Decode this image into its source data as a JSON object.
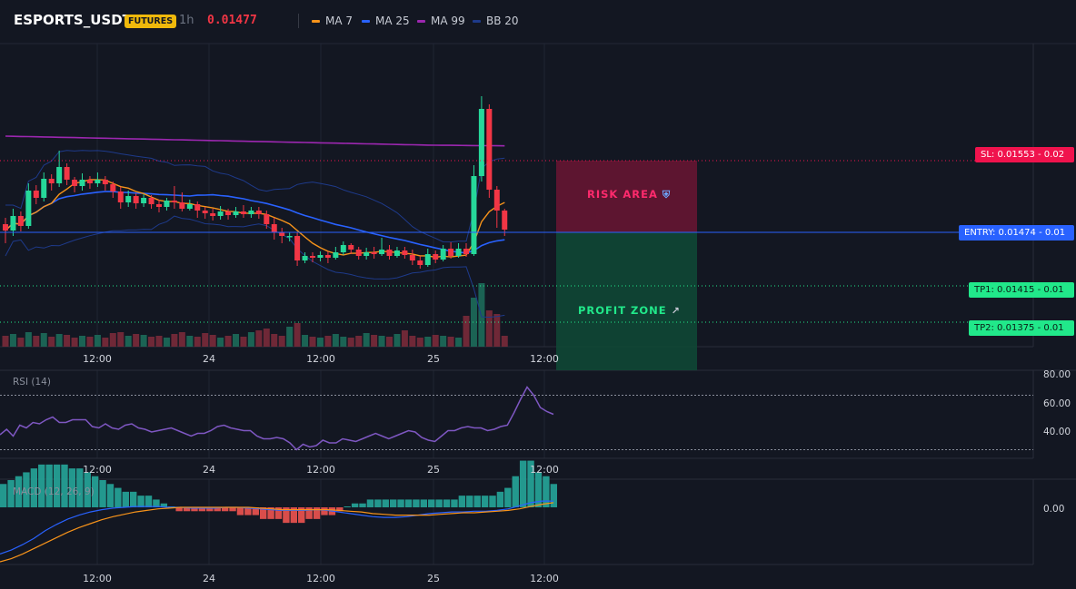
{
  "header": {
    "symbol": "ESPORTS_USDT",
    "badge": "FUTURES",
    "interval": "1h",
    "price": "0.01477",
    "legend": [
      {
        "label": "MA 7",
        "color": "#f7931a"
      },
      {
        "label": "MA 25",
        "color": "#2962ff"
      },
      {
        "label": "MA 99",
        "color": "#9c27b0"
      },
      {
        "label": "BB 20",
        "color": "#1e3a8a"
      }
    ]
  },
  "levels": {
    "sl": "SL: 0.01553 - 0.02",
    "entry": "ENTRY: 0.01474 - 0.01",
    "tp1": "TP1: 0.01415 - 0.01",
    "tp2": "TP2: 0.01375 - 0.01"
  },
  "zones": {
    "risk_label": "RISK AREA",
    "profit_label": "PROFIT ZONE",
    "risk_icon": "shield-icon",
    "profit_icon": "rocket-icon"
  },
  "colors": {
    "up": "#26d89a",
    "down": "#f23645",
    "ma7": "#f7931a",
    "ma25": "#2962ff",
    "ma99": "#9c27b0",
    "bb": "#1e3a8a",
    "rsi": "#7e57c2",
    "macd_line": "#2962ff",
    "signal_line": "#f7931a"
  },
  "chart_data": [
    {
      "type": "candlestick",
      "title": "ESPORTS_USDT",
      "x_ticks": [
        "12:00",
        "24",
        "12:00",
        "25",
        "12:00"
      ],
      "ylim": [
        0.0134,
        0.0167
      ],
      "series": [
        {
          "name": "MA 7"
        },
        {
          "name": "MA 25"
        },
        {
          "name": "MA 99"
        },
        {
          "name": "BB 20"
        }
      ],
      "candles": [
        [
          0.01483,
          0.01476,
          0.0149,
          0.01462
        ],
        [
          0.01476,
          0.01492,
          0.015,
          0.0147
        ],
        [
          0.01492,
          0.01481,
          0.01497,
          0.01475
        ],
        [
          0.01481,
          0.0152,
          0.01528,
          0.01478
        ],
        [
          0.0152,
          0.01512,
          0.01526,
          0.01505
        ],
        [
          0.01512,
          0.01533,
          0.0154,
          0.01508
        ],
        [
          0.01533,
          0.01528,
          0.01538,
          0.0152
        ],
        [
          0.01528,
          0.01546,
          0.01564,
          0.01524
        ],
        [
          0.01546,
          0.01532,
          0.0155,
          0.01526
        ],
        [
          0.01532,
          0.01525,
          0.01535,
          0.01518
        ],
        [
          0.01525,
          0.01532,
          0.01539,
          0.0152
        ],
        [
          0.01532,
          0.01528,
          0.01536,
          0.01522
        ],
        [
          0.01528,
          0.01532,
          0.0154,
          0.01524
        ],
        [
          0.01532,
          0.01527,
          0.01536,
          0.0152
        ],
        [
          0.01527,
          0.01519,
          0.0153,
          0.01512
        ],
        [
          0.01519,
          0.01507,
          0.01524,
          0.015
        ],
        [
          0.01507,
          0.01514,
          0.0152,
          0.01502
        ],
        [
          0.01514,
          0.01506,
          0.01517,
          0.015
        ],
        [
          0.01506,
          0.01512,
          0.01516,
          0.01502
        ],
        [
          0.01512,
          0.01505,
          0.01515,
          0.015
        ],
        [
          0.01505,
          0.01502,
          0.0151,
          0.01496
        ],
        [
          0.01502,
          0.01509,
          0.01512,
          0.01498
        ],
        [
          0.01509,
          0.01507,
          0.01525,
          0.015
        ],
        [
          0.01507,
          0.015,
          0.01518,
          0.01497
        ],
        [
          0.015,
          0.01505,
          0.0151,
          0.01498
        ],
        [
          0.01505,
          0.01498,
          0.01508,
          0.0149
        ],
        [
          0.01498,
          0.01495,
          0.01502,
          0.01489
        ],
        [
          0.01495,
          0.01492,
          0.015,
          0.01487
        ],
        [
          0.01492,
          0.01497,
          0.01503,
          0.01488
        ],
        [
          0.01497,
          0.01493,
          0.015,
          0.01488
        ],
        [
          0.01493,
          0.01497,
          0.01502,
          0.0149
        ],
        [
          0.01497,
          0.01494,
          0.01504,
          0.0149
        ],
        [
          0.01494,
          0.01498,
          0.01502,
          0.0149
        ],
        [
          0.01498,
          0.01494,
          0.01502,
          0.01489
        ],
        [
          0.01494,
          0.01483,
          0.01498,
          0.01478
        ],
        [
          0.01483,
          0.01474,
          0.0149,
          0.01466
        ],
        [
          0.01474,
          0.0147,
          0.01479,
          0.01462
        ],
        [
          0.0147,
          0.0147,
          0.01474,
          0.01464
        ],
        [
          0.0147,
          0.01443,
          0.01474,
          0.01437
        ],
        [
          0.01443,
          0.01448,
          0.01452,
          0.0144
        ],
        [
          0.01448,
          0.01446,
          0.01452,
          0.01441
        ],
        [
          0.01446,
          0.01449,
          0.01453,
          0.01442
        ],
        [
          0.01449,
          0.01446,
          0.01453,
          0.0144
        ],
        [
          0.01446,
          0.01452,
          0.01458,
          0.01444
        ],
        [
          0.01452,
          0.0146,
          0.01464,
          0.01449
        ],
        [
          0.0146,
          0.01455,
          0.01462,
          0.0145
        ],
        [
          0.01455,
          0.01448,
          0.01458,
          0.01444
        ],
        [
          0.01448,
          0.01452,
          0.01457,
          0.01444
        ],
        [
          0.01452,
          0.0145,
          0.01458,
          0.01445
        ],
        [
          0.0145,
          0.01455,
          0.01468,
          0.01448
        ],
        [
          0.01455,
          0.01448,
          0.0146,
          0.01444
        ],
        [
          0.01448,
          0.01454,
          0.01458,
          0.01446
        ],
        [
          0.01454,
          0.01449,
          0.01458,
          0.01445
        ],
        [
          0.01449,
          0.01443,
          0.01455,
          0.01438
        ],
        [
          0.01443,
          0.01438,
          0.01448,
          0.01434
        ],
        [
          0.01438,
          0.0145,
          0.01456,
          0.01436
        ],
        [
          0.0145,
          0.01444,
          0.01454,
          0.0144
        ],
        [
          0.01444,
          0.01456,
          0.0146,
          0.01442
        ],
        [
          0.01456,
          0.01448,
          0.01463,
          0.01445
        ],
        [
          0.01448,
          0.01456,
          0.01462,
          0.01446
        ],
        [
          0.01456,
          0.0145,
          0.01462,
          0.01447
        ],
        [
          0.0145,
          0.01536,
          0.01548,
          0.01448
        ],
        [
          0.01536,
          0.0161,
          0.01624,
          0.0153
        ],
        [
          0.0161,
          0.01521,
          0.01615,
          0.01512
        ],
        [
          0.01521,
          0.01498,
          0.01525,
          0.01479
        ],
        [
          0.01498,
          0.01477,
          0.015,
          0.0147
        ]
      ]
    },
    {
      "type": "bar",
      "title": "Volume",
      "note": "volume bars, unlabeled"
    },
    {
      "type": "line",
      "title": "RSI (14)",
      "x_ticks": [
        "12:00",
        "24",
        "12:00",
        "25",
        "12:00"
      ],
      "y_ticks": [
        "80.00",
        "60.00",
        "40.00"
      ],
      "ylim": [
        25,
        85
      ],
      "guide_levels": [
        70,
        30
      ],
      "values": [
        41,
        45,
        40,
        48,
        46,
        50,
        49,
        52,
        54,
        50,
        50,
        52,
        52,
        52,
        47,
        46,
        49,
        46,
        45,
        48,
        49,
        46,
        45,
        43,
        44,
        45,
        46,
        44,
        42,
        40,
        42,
        42,
        44,
        47,
        48,
        46,
        45,
        44,
        44,
        40,
        38,
        38,
        39,
        38,
        35,
        30,
        34,
        32,
        33,
        37,
        35,
        35,
        38,
        37,
        36,
        38,
        40,
        42,
        40,
        38,
        40,
        42,
        44,
        43,
        39,
        37,
        36,
        40,
        44,
        44,
        46,
        47,
        46,
        46,
        44,
        45,
        47,
        48,
        57,
        67,
        76,
        70,
        61,
        58,
        56
      ]
    },
    {
      "type": "line",
      "title": "MACD (12, 26, 9)",
      "x_ticks": [
        "12:00",
        "24",
        "12:00",
        "25",
        "12:00"
      ],
      "y_ticks": [
        "0.00"
      ],
      "series": [
        {
          "name": "MACD",
          "values": [
            -0.0006,
            -0.00055,
            -0.00048,
            -0.0004,
            -0.0003,
            -0.00022,
            -0.00015,
            -0.0001,
            -6e-05,
            -3e-05,
            -1e-05,
            0.0,
            1e-05,
            1e-05,
            1e-05,
            0.0,
            0.0,
            -1e-05,
            -1e-05,
            -1e-05,
            0.0,
            0.0,
            -1e-05,
            -2e-05,
            -3e-05,
            -4e-05,
            -4e-05,
            -4e-05,
            -3e-05,
            -4e-05,
            -6e-05,
            -8e-05,
            -0.0001,
            -0.00012,
            -0.00013,
            -0.00013,
            -0.00012,
            -0.0001,
            -8e-05,
            -7e-05,
            -6e-05,
            -6e-05,
            -5e-05,
            -5e-05,
            -4e-05,
            -2e-05,
            2e-05,
            6e-05,
            8e-05,
            8e-05
          ]
        },
        {
          "name": "Signal",
          "values": [
            -0.0007,
            -0.00066,
            -0.0006,
            -0.00053,
            -0.00046,
            -0.00039,
            -0.00032,
            -0.00026,
            -0.00021,
            -0.00016,
            -0.00012,
            -9e-05,
            -6e-05,
            -4e-05,
            -2e-05,
            -1e-05,
            0.0,
            0.0,
            0.0,
            0.0,
            0.0,
            0.0,
            0.0,
            -1e-05,
            -2e-05,
            -3e-05,
            -3e-05,
            -3e-05,
            -3e-05,
            -3e-05,
            -4e-05,
            -5e-05,
            -6e-05,
            -8e-05,
            -9e-05,
            -0.0001,
            -0.0001,
            -0.0001,
            -0.0001,
            -9e-05,
            -8e-05,
            -7e-05,
            -7e-05,
            -6e-05,
            -5e-05,
            -4e-05,
            -2e-05,
            1e-05,
            4e-05,
            6e-05
          ]
        }
      ],
      "histogram": [
        6e-05,
        7e-05,
        8e-05,
        9e-05,
        0.0001,
        0.00011,
        0.00011,
        0.00011,
        0.00011,
        0.0001,
        0.0001,
        9e-05,
        8e-05,
        7e-05,
        6e-05,
        5e-05,
        4e-05,
        4e-05,
        3e-05,
        3e-05,
        2e-05,
        1e-05,
        0.0,
        -1e-05,
        -1e-05,
        -1e-05,
        -1e-05,
        -1e-05,
        -1e-05,
        -1e-05,
        -1e-05,
        -2e-05,
        -2e-05,
        -2e-05,
        -3e-05,
        -3e-05,
        -3e-05,
        -4e-05,
        -4e-05,
        -4e-05,
        -3e-05,
        -3e-05,
        -2e-05,
        -2e-05,
        -1e-05,
        0.0,
        1e-05,
        1e-05,
        2e-05,
        2e-05,
        2e-05,
        2e-05,
        2e-05,
        2e-05,
        2e-05,
        2e-05,
        2e-05,
        2e-05,
        2e-05,
        2e-05,
        3e-05,
        3e-05,
        3e-05,
        3e-05,
        3e-05,
        4e-05,
        5e-05,
        8e-05,
        0.00012,
        0.00012,
        9e-05,
        8e-05,
        6e-05
      ]
    }
  ]
}
